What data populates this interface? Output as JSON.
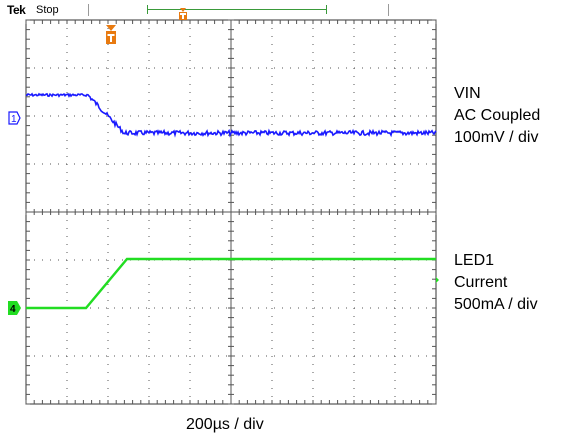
{
  "status": {
    "brand": "Tek",
    "run_state": "Stop"
  },
  "channels": [
    {
      "marker": "1",
      "name": "VIN",
      "coupling": "AC Coupled",
      "scale": "100mV / div",
      "color": "#1a1aff"
    },
    {
      "marker": "4",
      "name": "LED1",
      "sub": "Current",
      "scale": "500mA / div",
      "color": "#22dd22"
    }
  ],
  "trigger": {
    "marker": "T",
    "color": "#e87a10"
  },
  "timebase": "200µs / div",
  "colors": {
    "record_bar": "#3a9a3a",
    "graticule": "#555555",
    "frame": "#333333"
  }
}
